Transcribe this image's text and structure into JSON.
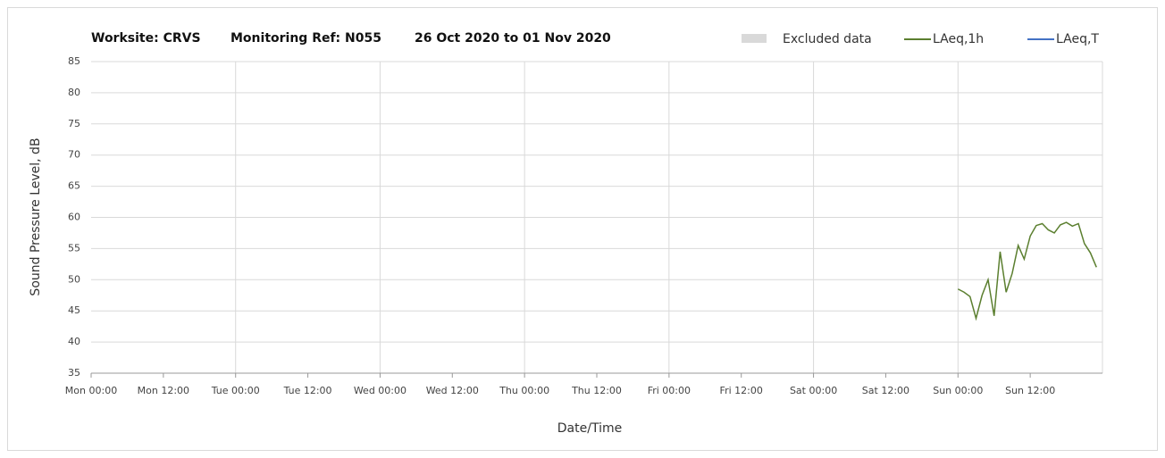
{
  "chart_data": {
    "type": "line",
    "title_parts": [
      "Worksite: CRVS",
      "Monitoring Ref: N055",
      "26 Oct 2020 to 01 Nov 2020"
    ],
    "ylabel": "Sound Pressure Level, dB",
    "xlabel": "Date/Time",
    "excluded": {
      "name": "Excluded data",
      "color": "#d9d9d9"
    },
    "x": [
      144,
      145,
      146,
      147,
      148,
      149,
      150,
      151,
      152,
      153,
      154,
      155,
      156,
      157,
      158,
      159,
      160,
      161,
      162,
      163,
      164,
      165,
      166,
      167
    ],
    "series": [
      {
        "name": "LAeq,1h",
        "color": "#5b7f2f",
        "values": [
          48.5,
          48.0,
          47.3,
          43.8,
          47.5,
          50.0,
          44.2,
          54.5,
          48.0,
          51.0,
          55.5,
          53.3,
          57.0,
          58.7,
          59.0,
          58.0,
          57.5,
          58.8,
          59.2,
          58.6,
          59.0,
          55.8,
          54.3,
          52.0
        ]
      },
      {
        "name": "LAeq,T",
        "color": "#4472c4",
        "values": [
          null,
          null,
          null,
          null,
          null,
          null,
          null,
          null,
          null,
          null,
          null,
          null,
          null,
          null,
          null,
          null,
          null,
          null,
          null,
          null,
          null,
          null,
          null,
          null
        ]
      }
    ],
    "xlim": [
      0,
      168
    ],
    "xticks": [
      {
        "value": 0,
        "label": "Mon 00:00"
      },
      {
        "value": 12,
        "label": "Mon 12:00"
      },
      {
        "value": 24,
        "label": "Tue 00:00"
      },
      {
        "value": 36,
        "label": "Tue 12:00"
      },
      {
        "value": 48,
        "label": "Wed 00:00"
      },
      {
        "value": 60,
        "label": "Wed 12:00"
      },
      {
        "value": 72,
        "label": "Thu 00:00"
      },
      {
        "value": 84,
        "label": "Thu 12:00"
      },
      {
        "value": 96,
        "label": "Fri 00:00"
      },
      {
        "value": 108,
        "label": "Fri 12:00"
      },
      {
        "value": 120,
        "label": "Sat 00:00"
      },
      {
        "value": 132,
        "label": "Sat 12:00"
      },
      {
        "value": 144,
        "label": "Sun 00:00"
      },
      {
        "value": 156,
        "label": "Sun 12:00"
      }
    ],
    "ylim": [
      35,
      85
    ],
    "yticks": [
      35,
      40,
      45,
      50,
      55,
      60,
      65,
      70,
      75,
      80,
      85
    ],
    "grid": true
  }
}
